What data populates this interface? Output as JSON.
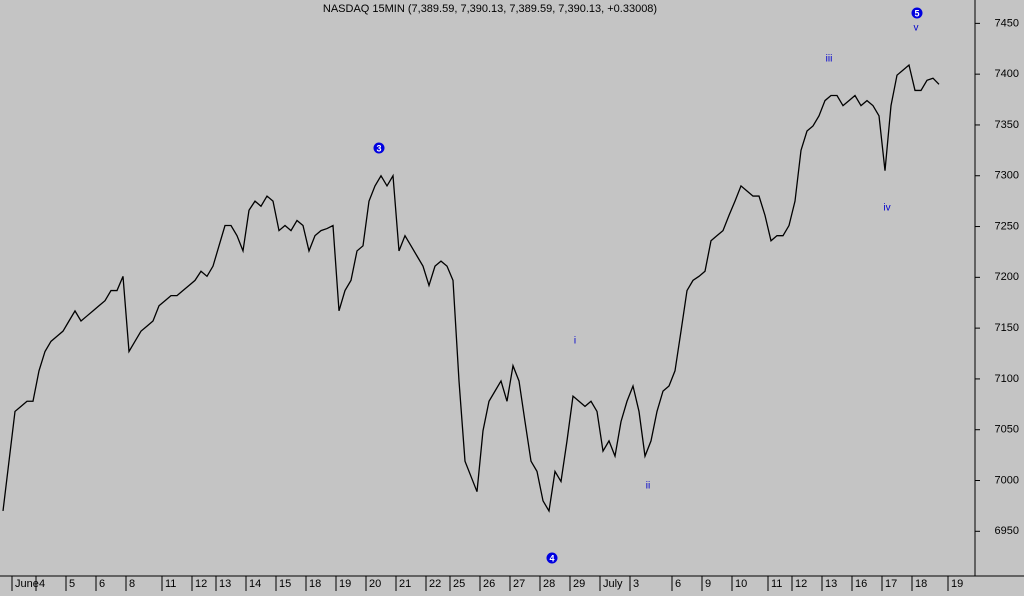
{
  "chart_data": {
    "type": "line",
    "title": "NASDAQ 15MIN (7,389.59, 7,390.13, 7,389.59, 7,390.13, +0.33008)",
    "categories": [
      null,
      null,
      "June",
      null,
      null,
      null,
      "4",
      null,
      null,
      null,
      null,
      "5",
      null,
      null,
      null,
      null,
      "6",
      null,
      null,
      null,
      null,
      "8",
      null,
      null,
      null,
      null,
      null,
      "11",
      null,
      null,
      null,
      null,
      "12",
      null,
      null,
      null,
      "13",
      null,
      null,
      null,
      null,
      "14",
      null,
      null,
      null,
      null,
      "15",
      null,
      null,
      null,
      null,
      "18",
      null,
      null,
      null,
      null,
      "19",
      null,
      null,
      null,
      null,
      "20",
      null,
      null,
      null,
      null,
      "21",
      null,
      null,
      null,
      null,
      "22",
      null,
      null,
      null,
      "25",
      null,
      null,
      null,
      null,
      "26",
      null,
      null,
      null,
      null,
      "27",
      null,
      null,
      null,
      null,
      "28",
      null,
      null,
      null,
      null,
      "29",
      null,
      null,
      null,
      null,
      "July",
      null,
      null,
      null,
      null,
      "3",
      null,
      null,
      null,
      null,
      null,
      null,
      "6",
      null,
      null,
      null,
      null,
      "9",
      null,
      null,
      null,
      null,
      "10",
      null,
      null,
      null,
      null,
      null,
      "11",
      null,
      null,
      null,
      "12",
      null,
      null,
      null,
      null,
      "13",
      null,
      null,
      null,
      null,
      "16",
      null,
      null,
      null,
      null,
      "17",
      null,
      null,
      null,
      null,
      "18",
      null,
      null,
      null,
      null,
      null,
      "19"
    ],
    "values": [
      6970,
      7019,
      7068,
      7073,
      7078,
      7078,
      7108,
      7127,
      7137,
      7142,
      7147,
      7157,
      7167,
      7157,
      7162,
      7167,
      7172,
      7177,
      7187,
      7187,
      7201,
      7127,
      7137,
      7147,
      7152,
      7157,
      7172,
      7177,
      7182,
      7182,
      7187,
      7192,
      7197,
      7206,
      7201,
      7211,
      7231,
      7251,
      7251,
      7241,
      7226,
      7266,
      7275,
      7270,
      7280,
      7275,
      7246,
      7251,
      7246,
      7256,
      7251,
      7226,
      7241,
      7246,
      7248,
      7251,
      7167,
      7187,
      7197,
      7226,
      7231,
      7275,
      7290,
      7300,
      7290,
      7300,
      7226,
      7241,
      7231,
      7221,
      7211,
      7192,
      7211,
      7216,
      7211,
      7197,
      7098,
      7019,
      7004,
      6989,
      7049,
      7078,
      7088,
      7098,
      7078,
      7113,
      7098,
      7058,
      7019,
      7009,
      6980,
      6970,
      7009,
      6999,
      7039,
      7083,
      7078,
      7073,
      7078,
      7068,
      7029,
      7039,
      7024,
      7058,
      7078,
      7093,
      7068,
      7024,
      7039,
      7068,
      7088,
      7093,
      7108,
      7147,
      7187,
      7197,
      7201,
      7206,
      7236,
      7241,
      7246,
      7261,
      7275,
      7290,
      7285,
      7280,
      7280,
      7261,
      7236,
      7241,
      7241,
      7251,
      7275,
      7325,
      7344,
      7349,
      7359,
      7374,
      7379,
      7379,
      7369,
      7374,
      7379,
      7369,
      7374,
      7369,
      7359,
      7305,
      7369,
      7399,
      7404,
      7409,
      7384,
      7384,
      7394,
      7396,
      7390,
      null,
      null
    ],
    "color": "#000000",
    "ylim": [
      6906,
      7473
    ],
    "yticks": [
      6950,
      7000,
      7050,
      7100,
      7150,
      7200,
      7250,
      7300,
      7350,
      7400,
      7450
    ],
    "annotations": [
      "3",
      "4",
      "5",
      "i",
      "ii",
      "iii",
      "iv",
      "v"
    ]
  }
}
